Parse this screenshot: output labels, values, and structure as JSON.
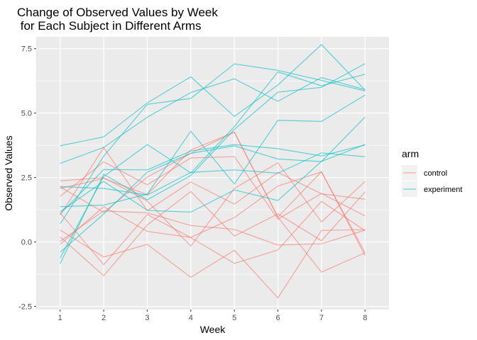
{
  "chart_data": {
    "type": "line",
    "title_line1": "Change of Observed Values by Week",
    "title_line2": " for Each Subject in Different Arms",
    "xlabel": "Week",
    "ylabel": "Observed Values",
    "x": [
      1,
      2,
      3,
      4,
      5,
      6,
      7,
      8
    ],
    "x_ticks": [
      "1",
      "2",
      "3",
      "4",
      "5",
      "6",
      "7",
      "8"
    ],
    "y_ticks": [
      -2.5,
      0.0,
      2.5,
      5.0,
      7.5
    ],
    "y_tick_labels": [
      "-2.5",
      "0.0",
      "2.5",
      "5.0",
      "7.5"
    ],
    "xlim": [
      0.45,
      8.55
    ],
    "ylim": [
      -2.62,
      7.96
    ],
    "grid": true,
    "legend": {
      "title": "arm",
      "position": "right",
      "entries": [
        {
          "label": "control",
          "color": "#F8766D"
        },
        {
          "label": "experiment",
          "color": "#00BFC4"
        }
      ]
    },
    "series": [
      {
        "group": "control",
        "values": [
          0.2,
          -1.31,
          0.66,
          1.96,
          0.23,
          1.09,
          0.05,
          1.94
        ]
      },
      {
        "group": "control",
        "values": [
          1.13,
          -0.88,
          1.07,
          0.17,
          -0.83,
          -0.31,
          1.58,
          0.44
        ]
      },
      {
        "group": "control",
        "values": [
          1.77,
          3.11,
          2.22,
          3.26,
          3.31,
          0.89,
          1.88,
          1.01
        ]
      },
      {
        "group": "control",
        "values": [
          1.04,
          3.66,
          1.22,
          2.33,
          1.47,
          2.7,
          1.87,
          1.66
        ]
      },
      {
        "group": "control",
        "values": [
          0.47,
          -0.58,
          -0.09,
          -1.37,
          -0.32,
          -2.17,
          0.45,
          0.48
        ]
      },
      {
        "group": "control",
        "values": [
          2.37,
          2.5,
          1.59,
          -0.16,
          2.08,
          3.07,
          0.78,
          2.35
        ]
      },
      {
        "group": "control",
        "values": [
          0.03,
          1.21,
          1.13,
          0.64,
          0.49,
          -0.12,
          -0.07,
          0.46
        ]
      },
      {
        "group": "control",
        "values": [
          -0.09,
          1.37,
          0.41,
          0.18,
          0.95,
          2.17,
          2.72,
          -0.42
        ]
      },
      {
        "group": "control",
        "values": [
          2.08,
          2.46,
          1.84,
          3.57,
          4.26,
          0.96,
          -1.17,
          -0.42
        ]
      },
      {
        "group": "control",
        "values": [
          2.14,
          1.15,
          2.52,
          3.44,
          4.26,
          0.97,
          2.73,
          -0.53
        ]
      },
      {
        "group": "experiment",
        "values": [
          3.05,
          3.67,
          4.84,
          5.8,
          6.33,
          5.46,
          6.38,
          5.91
        ]
      },
      {
        "group": "experiment",
        "values": [
          -0.84,
          2.63,
          1.64,
          2.58,
          4.37,
          5.81,
          6.0,
          6.92
        ]
      },
      {
        "group": "experiment",
        "values": [
          2.15,
          2.08,
          1.82,
          2.7,
          2.8,
          2.67,
          3.46,
          3.31
        ]
      },
      {
        "group": "experiment",
        "values": [
          -0.62,
          2.54,
          3.78,
          2.68,
          4.48,
          6.6,
          6.06,
          6.51
        ]
      },
      {
        "group": "experiment",
        "values": [
          0.7,
          3.33,
          5.34,
          5.57,
          6.91,
          6.66,
          6.27,
          5.86
        ]
      },
      {
        "group": "experiment",
        "values": [
          3.73,
          4.08,
          5.4,
          6.41,
          4.87,
          6.09,
          7.66,
          5.89
        ]
      },
      {
        "group": "experiment",
        "values": [
          1.18,
          2.35,
          1.23,
          1.16,
          2.02,
          1.61,
          3.13,
          3.78
        ]
      },
      {
        "group": "experiment",
        "values": [
          1.37,
          1.43,
          1.86,
          4.3,
          2.25,
          4.72,
          4.68,
          5.7
        ]
      },
      {
        "group": "experiment",
        "values": [
          -0.4,
          1.09,
          2.71,
          3.44,
          3.73,
          3.22,
          3.12,
          4.85
        ]
      },
      {
        "group": "experiment",
        "values": [
          1.09,
          2.81,
          2.8,
          3.53,
          3.78,
          3.62,
          3.34,
          3.77
        ]
      }
    ]
  }
}
